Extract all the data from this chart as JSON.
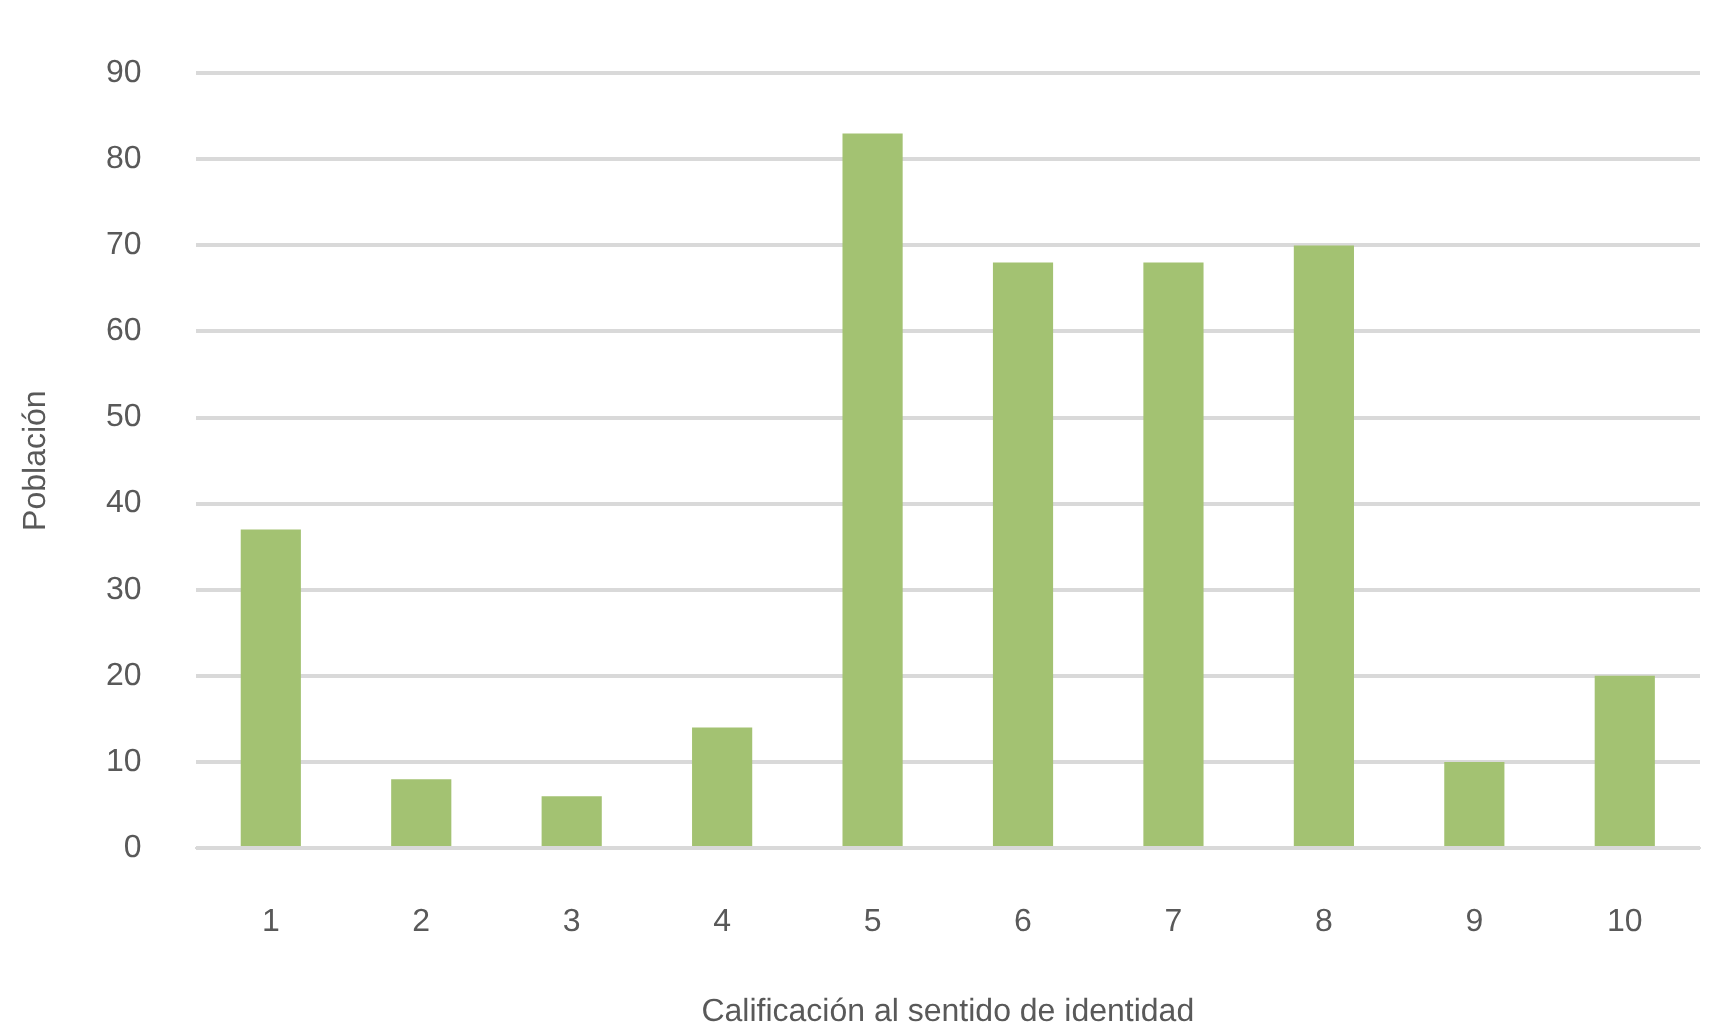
{
  "chart_data": {
    "type": "bar",
    "xlabel": "Calificación al sentido de identidad",
    "ylabel": "Población",
    "categories": [
      "1",
      "2",
      "3",
      "4",
      "5",
      "6",
      "7",
      "8",
      "9",
      "10"
    ],
    "values": [
      37,
      8,
      6,
      14,
      83,
      68,
      68,
      70,
      10,
      20
    ],
    "color": "#a3c272",
    "ylim": [
      0,
      90
    ],
    "yticks": [
      0,
      10,
      20,
      30,
      40,
      50,
      60,
      70,
      80,
      90
    ],
    "grid": "y"
  }
}
